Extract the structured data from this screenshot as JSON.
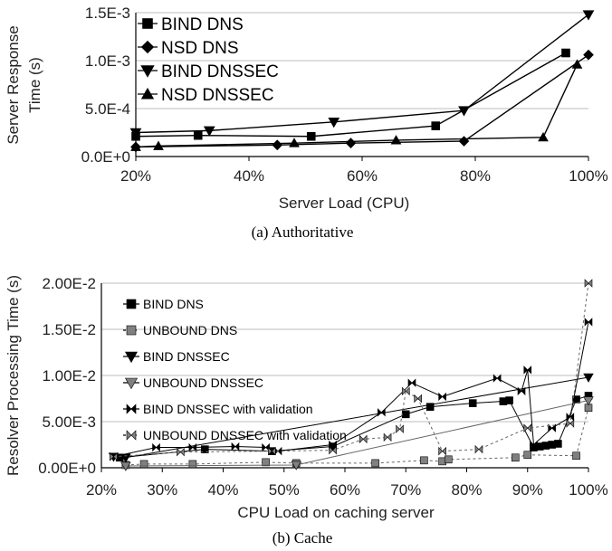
{
  "chart_data": [
    {
      "type": "line",
      "caption": "(a) Authoritative",
      "xlabel": "Server Load (CPU)",
      "ylabel": "Server Response Time (s)",
      "ylabel_lines": [
        "Server Response",
        "Time (s)"
      ],
      "xlim": [
        20,
        100
      ],
      "ylim": [
        0,
        0.0015
      ],
      "xticks": [
        20,
        40,
        60,
        80,
        100
      ],
      "xtick_labels": [
        "20%",
        "40%",
        "60%",
        "80%",
        "100%"
      ],
      "yticks": [
        0,
        0.0005,
        0.001,
        0.0015
      ],
      "ytick_labels": [
        "0.0E+0",
        "5.0E-4",
        "1.0E-3",
        "1.5E-3"
      ],
      "grid": "horizontal",
      "legend_position": "top-left",
      "series": [
        {
          "name": "BIND DNS",
          "marker": "square",
          "color": "#000000",
          "x": [
            20,
            31,
            51,
            73,
            96
          ],
          "y": [
            0.00021,
            0.00022,
            0.00021,
            0.00032,
            0.00108
          ]
        },
        {
          "name": "NSD DNS",
          "marker": "diamond",
          "color": "#000000",
          "x": [
            20,
            45,
            58,
            78,
            100
          ],
          "y": [
            0.0001,
            0.00012,
            0.00014,
            0.00016,
            0.00106
          ]
        },
        {
          "name": "BIND DNSSEC",
          "marker": "triangle-down",
          "color": "#000000",
          "x": [
            20,
            33,
            55,
            78,
            100
          ],
          "y": [
            0.00025,
            0.00027,
            0.00036,
            0.00048,
            0.00148
          ]
        },
        {
          "name": "NSD DNSSEC",
          "marker": "triangle-up",
          "color": "#000000",
          "x": [
            20,
            24,
            48,
            66,
            92,
            98
          ],
          "y": [
            0.0001,
            0.00011,
            0.00014,
            0.00017,
            0.0002,
            0.00096
          ]
        }
      ]
    },
    {
      "type": "line",
      "caption": "(b) Cache",
      "xlabel": "CPU Load on caching server",
      "ylabel": "Resolver Processing Time (s)",
      "xlim": [
        20,
        100
      ],
      "ylim": [
        0,
        0.02
      ],
      "xticks": [
        20,
        30,
        40,
        50,
        60,
        70,
        80,
        90,
        100
      ],
      "xtick_labels": [
        "20%",
        "30%",
        "40%",
        "50%",
        "60%",
        "70%",
        "80%",
        "90%",
        "100%"
      ],
      "yticks": [
        0,
        0.005,
        0.01,
        0.015,
        0.02
      ],
      "ytick_labels": [
        "0.00E+0",
        "5.00E-3",
        "1.00E-2",
        "1.50E-2",
        "2.00E-2"
      ],
      "grid": "horizontal",
      "legend_position": "top-left",
      "series": [
        {
          "name": "BIND DNS",
          "marker": "square",
          "color": "#000000",
          "dash": "",
          "x": [
            23,
            37,
            48,
            58,
            70,
            74,
            81,
            86,
            87,
            91,
            92,
            93,
            94,
            95,
            98,
            100
          ],
          "y": [
            0.0011,
            0.002,
            0.0018,
            0.0023,
            0.0058,
            0.0066,
            0.007,
            0.0072,
            0.0073,
            0.0022,
            0.0023,
            0.0024,
            0.0025,
            0.0026,
            0.0074,
            0.0078
          ]
        },
        {
          "name": "UNBOUND DNS",
          "marker": "square",
          "color": "#808080",
          "dash": "3,3",
          "x": [
            24,
            27,
            35,
            47,
            52,
            65,
            73,
            76,
            77,
            88,
            90,
            98,
            100
          ],
          "y": [
            0.0003,
            0.0004,
            0.0004,
            0.0006,
            0.0005,
            0.0005,
            0.0008,
            0.0007,
            0.0009,
            0.0011,
            0.0014,
            0.0013,
            0.0065
          ]
        },
        {
          "name": "BIND DNSSEC",
          "marker": "triangle-down",
          "color": "#000000",
          "dash": "",
          "x": [
            22,
            24,
            100
          ],
          "y": [
            0.0012,
            0.0011,
            0.0098
          ]
        },
        {
          "name": "UNBOUND DNSSEC",
          "marker": "triangle-down",
          "color": "#808080",
          "dash": "",
          "x": [
            24,
            52,
            100
          ],
          "y": [
            0.0002,
            0.0003,
            0.0073
          ]
        },
        {
          "name": "BIND DNSSEC with validation",
          "marker": "bowtie",
          "color": "#000000",
          "dash": "",
          "x": [
            22,
            29,
            35,
            42,
            47,
            49,
            58,
            66,
            71,
            76,
            85,
            89,
            90,
            91,
            94,
            97,
            100
          ],
          "y": [
            0.0012,
            0.0022,
            0.0022,
            0.0023,
            0.0022,
            0.0018,
            0.0025,
            0.006,
            0.0092,
            0.0077,
            0.0097,
            0.0083,
            0.0106,
            0.0025,
            0.0043,
            0.0055,
            0.0158
          ]
        },
        {
          "name": "UNBOUND DNSSEC with validation",
          "marker": "bowtie",
          "color": "#808080",
          "dash": "3,3",
          "x": [
            22,
            33,
            48,
            58,
            63,
            67,
            69,
            70,
            72,
            76,
            82,
            90,
            97,
            100
          ],
          "y": [
            0.0012,
            0.0017,
            0.0018,
            0.0019,
            0.0031,
            0.0033,
            0.0042,
            0.0083,
            0.0075,
            0.0018,
            0.002,
            0.0043,
            0.0048,
            0.02
          ]
        }
      ]
    }
  ]
}
